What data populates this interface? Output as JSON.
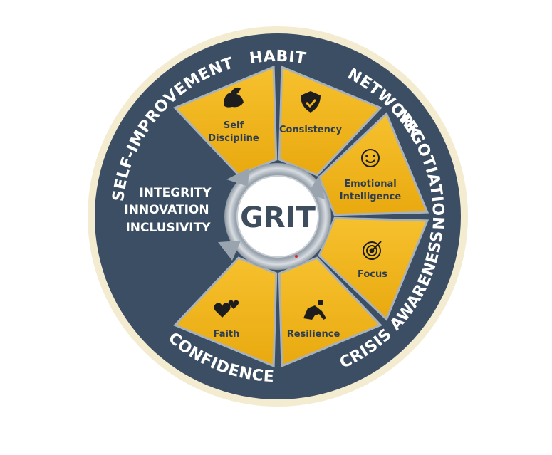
{
  "hub": {
    "label": "GRIT"
  },
  "values": [
    "INTEGRITY",
    "INNOVATION",
    "INCLUSIVITY"
  ],
  "ring_labels": [
    {
      "id": "habit",
      "text": "HABIT"
    },
    {
      "id": "network",
      "text": "NETWORK"
    },
    {
      "id": "negotiation",
      "text": "NEGOTIATION"
    },
    {
      "id": "crisis",
      "text": "CRISIS AWARENESS"
    },
    {
      "id": "confidence",
      "text": "CONFIDENCE"
    },
    {
      "id": "selfimp",
      "text": "SELF-IMPROVEMENT"
    }
  ],
  "segments": [
    {
      "lines": [
        "Self",
        "Discipline"
      ],
      "icon": "flexed-bicep-icon"
    },
    {
      "lines": [
        "Consistency"
      ],
      "icon": "shield-check-icon"
    },
    {
      "lines": [
        "Emotional",
        "Intelligence"
      ],
      "icon": "smiling-face-hearts-icon"
    },
    {
      "lines": [
        "Focus"
      ],
      "icon": "target-arrow-icon"
    },
    {
      "lines": [
        "Resilience"
      ],
      "icon": "runner-start-icon"
    },
    {
      "lines": [
        "Faith"
      ],
      "icon": "hearts-icon"
    }
  ],
  "colors": {
    "navy": "#3b4e63",
    "gold": "#f2b418",
    "cream": "#f4ecd1",
    "text_dark": "#2f3e4e",
    "white": "#ffffff"
  }
}
